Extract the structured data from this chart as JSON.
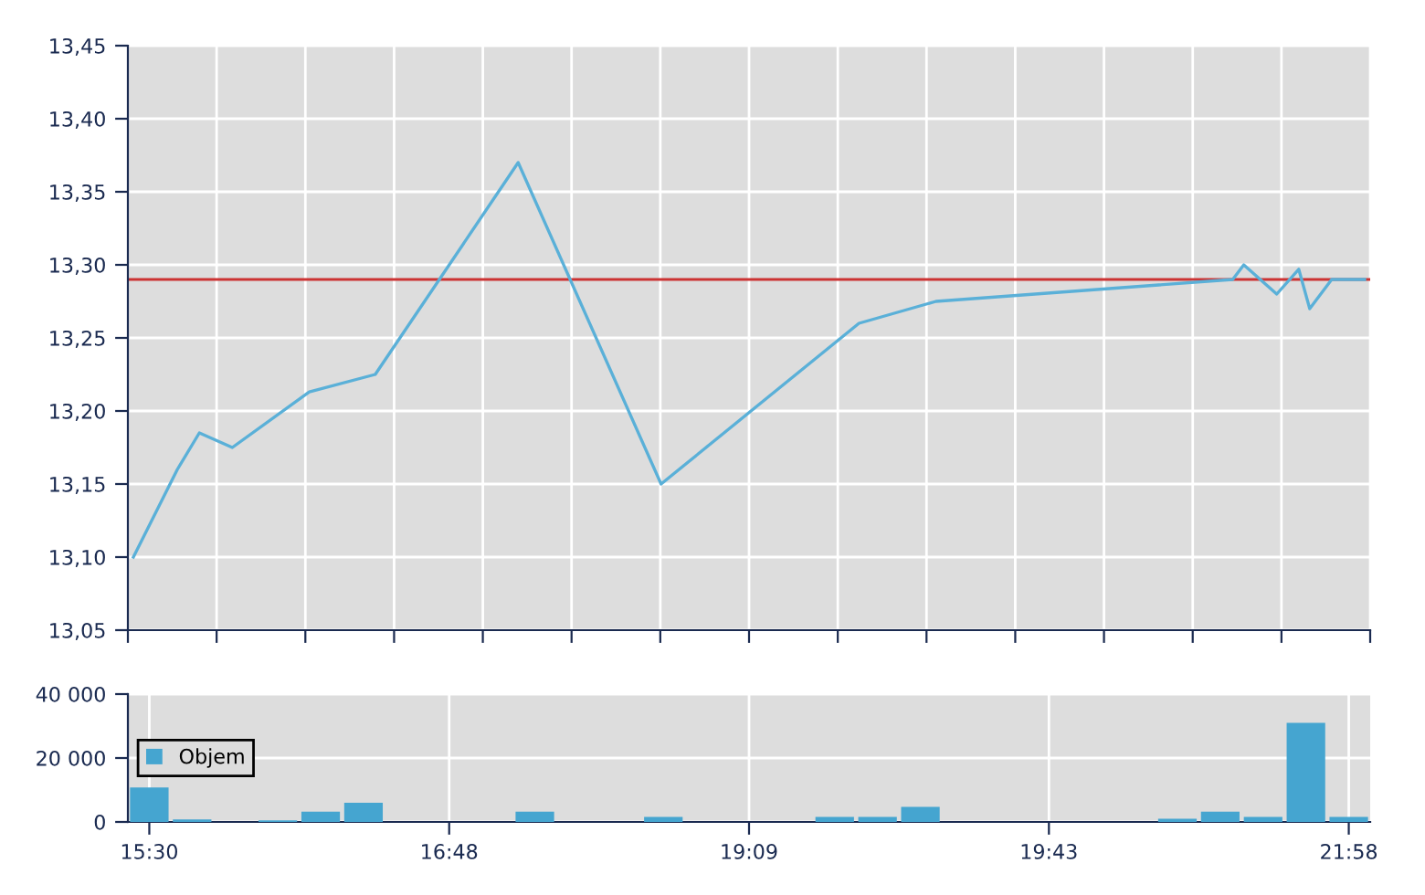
{
  "chart_data": [
    {
      "type": "line",
      "categories": [
        null,
        null,
        null,
        null,
        null,
        null,
        null,
        null,
        null,
        null,
        null,
        null,
        null,
        null,
        null,
        null,
        null,
        null,
        null,
        null,
        null,
        null,
        null,
        null,
        null,
        null,
        null,
        null,
        null,
        null,
        null,
        null,
        null,
        null,
        null,
        null,
        null,
        null,
        null,
        null,
        null,
        null,
        null,
        null,
        null,
        null,
        null,
        null,
        null,
        null,
        null,
        null,
        null,
        null,
        null,
        null,
        null,
        null,
        null,
        null,
        null,
        null,
        null,
        null,
        null,
        null,
        null,
        null,
        null,
        null,
        null,
        null,
        null,
        null,
        null,
        null,
        null,
        null,
        null,
        null,
        null,
        null,
        null,
        null,
        null,
        null,
        null,
        null,
        null,
        null,
        null,
        null,
        null,
        null,
        null,
        null,
        null,
        null,
        null,
        null,
        null,
        null,
        null,
        null,
        null,
        null,
        null,
        null,
        null,
        null,
        null,
        null,
        null
      ],
      "series": [
        {
          "color": "#5ab0d8",
          "values": [
            13.1,
            null,
            null,
            null,
            13.16,
            null,
            13.185,
            null,
            null,
            13.175,
            null,
            null,
            null,
            null,
            null,
            null,
            13.213,
            null,
            null,
            null,
            null,
            null,
            13.225,
            null,
            null,
            null,
            null,
            null,
            null,
            null,
            null,
            null,
            null,
            null,
            null,
            13.37,
            null,
            null,
            null,
            null,
            null,
            null,
            null,
            null,
            null,
            null,
            null,
            null,
            13.15,
            null,
            null,
            null,
            null,
            null,
            null,
            null,
            null,
            null,
            null,
            null,
            null,
            null,
            null,
            null,
            null,
            null,
            13.26,
            null,
            null,
            null,
            null,
            null,
            null,
            13.275,
            null,
            null,
            null,
            null,
            null,
            null,
            null,
            null,
            null,
            null,
            null,
            null,
            null,
            null,
            null,
            null,
            null,
            null,
            null,
            null,
            null,
            null,
            null,
            null,
            null,
            null,
            13.29,
            13.3,
            null,
            null,
            13.28,
            null,
            13.297,
            13.27,
            null,
            13.29,
            null,
            null,
            13.29
          ]
        }
      ],
      "ylim": [
        13.05,
        13.45
      ],
      "yticks": [
        {
          "value": 13.05,
          "label": "13,05"
        },
        {
          "value": 13.1,
          "label": "13,10"
        },
        {
          "value": 13.15,
          "label": "13,15"
        },
        {
          "value": 13.2,
          "label": "13,20"
        },
        {
          "value": 13.25,
          "label": "13,25"
        },
        {
          "value": 13.3,
          "label": "13,30"
        },
        {
          "value": 13.35,
          "label": "13,35"
        },
        {
          "value": 13.4,
          "label": "13,40"
        },
        {
          "value": 13.45,
          "label": "13,45"
        }
      ],
      "ref_lines": [
        {
          "axis": "y",
          "value": 13.29,
          "color": "#cc3333"
        }
      ],
      "grid": true,
      "tick_labels": "y",
      "marker": "none",
      "line_style": "solid"
    },
    {
      "type": "bar",
      "categories": [
        "15:30",
        null,
        null,
        null,
        null,
        null,
        null,
        "16:48",
        null,
        null,
        null,
        null,
        null,
        null,
        "19:09",
        null,
        null,
        null,
        null,
        null,
        null,
        "19:43",
        null,
        null,
        null,
        null,
        null,
        null,
        "21:58"
      ],
      "series": [
        {
          "name": "Objem",
          "color": "#45a5d0",
          "values": [
            10800,
            800,
            null,
            500,
            3200,
            6000,
            null,
            null,
            null,
            3200,
            null,
            null,
            1600,
            null,
            null,
            null,
            1600,
            1600,
            4700,
            null,
            null,
            null,
            null,
            null,
            1000,
            3200,
            1600,
            31000,
            1600
          ]
        }
      ],
      "ylim": [
        0,
        40000
      ],
      "yticks": [
        {
          "value": 0,
          "label": "0"
        },
        {
          "value": 20000,
          "label": "20 000"
        },
        {
          "value": 40000,
          "label": "40 000"
        }
      ],
      "grid": true,
      "legend": "left"
    }
  ]
}
